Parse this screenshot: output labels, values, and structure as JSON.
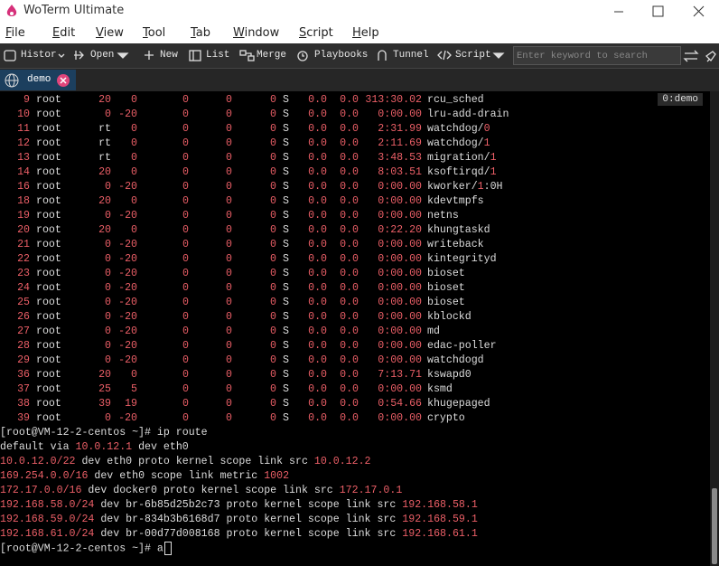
{
  "window": {
    "title": "WoTerm Ultimate"
  },
  "menu": [
    "File",
    "Edit",
    "View",
    "Tool",
    "Tab",
    "Window",
    "Script",
    "Help"
  ],
  "toolbar": {
    "buttons": [
      "Histor",
      "Open",
      "New",
      "List",
      "Merge",
      "Playbooks",
      "Tunnel",
      "Script"
    ],
    "search_placeholder": "Enter keyword to search"
  },
  "tabs": [
    {
      "label": "demo"
    }
  ],
  "terminal": {
    "badge": "0:demo",
    "process_rows": [
      [
        "9",
        "root",
        "20",
        "0",
        "0",
        "0",
        "0",
        "S",
        "0.0",
        "0.0",
        "313:30.02",
        "rcu_sched"
      ],
      [
        "10",
        "root",
        "0",
        "-20",
        "0",
        "0",
        "0",
        "S",
        "0.0",
        "0.0",
        "0:00.00",
        "lru-add-drain"
      ],
      [
        "11",
        "root",
        "rt",
        "0",
        "0",
        "0",
        "0",
        "S",
        "0.0",
        "0.0",
        "2:31.99",
        "watchdog/0"
      ],
      [
        "12",
        "root",
        "rt",
        "0",
        "0",
        "0",
        "0",
        "S",
        "0.0",
        "0.0",
        "2:11.69",
        "watchdog/1"
      ],
      [
        "13",
        "root",
        "rt",
        "0",
        "0",
        "0",
        "0",
        "S",
        "0.0",
        "0.0",
        "3:48.53",
        "migration/1"
      ],
      [
        "14",
        "root",
        "20",
        "0",
        "0",
        "0",
        "0",
        "S",
        "0.0",
        "0.0",
        "8:03.51",
        "ksoftirqd/1"
      ],
      [
        "16",
        "root",
        "0",
        "-20",
        "0",
        "0",
        "0",
        "S",
        "0.0",
        "0.0",
        "0:00.00",
        "kworker/1:0H"
      ],
      [
        "18",
        "root",
        "20",
        "0",
        "0",
        "0",
        "0",
        "S",
        "0.0",
        "0.0",
        "0:00.00",
        "kdevtmpfs"
      ],
      [
        "19",
        "root",
        "0",
        "-20",
        "0",
        "0",
        "0",
        "S",
        "0.0",
        "0.0",
        "0:00.00",
        "netns"
      ],
      [
        "20",
        "root",
        "20",
        "0",
        "0",
        "0",
        "0",
        "S",
        "0.0",
        "0.0",
        "0:22.20",
        "khungtaskd"
      ],
      [
        "21",
        "root",
        "0",
        "-20",
        "0",
        "0",
        "0",
        "S",
        "0.0",
        "0.0",
        "0:00.00",
        "writeback"
      ],
      [
        "22",
        "root",
        "0",
        "-20",
        "0",
        "0",
        "0",
        "S",
        "0.0",
        "0.0",
        "0:00.00",
        "kintegrityd"
      ],
      [
        "23",
        "root",
        "0",
        "-20",
        "0",
        "0",
        "0",
        "S",
        "0.0",
        "0.0",
        "0:00.00",
        "bioset"
      ],
      [
        "24",
        "root",
        "0",
        "-20",
        "0",
        "0",
        "0",
        "S",
        "0.0",
        "0.0",
        "0:00.00",
        "bioset"
      ],
      [
        "25",
        "root",
        "0",
        "-20",
        "0",
        "0",
        "0",
        "S",
        "0.0",
        "0.0",
        "0:00.00",
        "bioset"
      ],
      [
        "26",
        "root",
        "0",
        "-20",
        "0",
        "0",
        "0",
        "S",
        "0.0",
        "0.0",
        "0:00.00",
        "kblockd"
      ],
      [
        "27",
        "root",
        "0",
        "-20",
        "0",
        "0",
        "0",
        "S",
        "0.0",
        "0.0",
        "0:00.00",
        "md"
      ],
      [
        "28",
        "root",
        "0",
        "-20",
        "0",
        "0",
        "0",
        "S",
        "0.0",
        "0.0",
        "0:00.00",
        "edac-poller"
      ],
      [
        "29",
        "root",
        "0",
        "-20",
        "0",
        "0",
        "0",
        "S",
        "0.0",
        "0.0",
        "0:00.00",
        "watchdogd"
      ],
      [
        "36",
        "root",
        "20",
        "0",
        "0",
        "0",
        "0",
        "S",
        "0.0",
        "0.0",
        "7:13.71",
        "kswapd0"
      ],
      [
        "37",
        "root",
        "25",
        "5",
        "0",
        "0",
        "0",
        "S",
        "0.0",
        "0.0",
        "0:00.00",
        "ksmd"
      ],
      [
        "38",
        "root",
        "39",
        "19",
        "0",
        "0",
        "0",
        "S",
        "0.0",
        "0.0",
        "0:54.66",
        "khugepaged"
      ],
      [
        "39",
        "root",
        "0",
        "-20",
        "0",
        "0",
        "0",
        "S",
        "0.0",
        "0.0",
        "0:00.00",
        "crypto"
      ]
    ],
    "lines": [
      "[root@VM-12-2-centos ~]# ip route",
      "default via 10.0.12.1 dev eth0",
      "10.0.12.0/22 dev eth0 proto kernel scope link src 10.0.12.2",
      "169.254.0.0/16 dev eth0 scope link metric 1002",
      "172.17.0.0/16 dev docker0 proto kernel scope link src 172.17.0.1",
      "192.168.58.0/24 dev br-6b85d25b2c73 proto kernel scope link src 192.168.58.1",
      "192.168.59.0/24 dev br-834b3b6168d7 proto kernel scope link src 192.168.59.1",
      "192.168.61.0/24 dev br-00d77d008168 proto kernel scope link src 192.168.61.1",
      "[root@VM-12-2-centos ~]# a"
    ]
  }
}
